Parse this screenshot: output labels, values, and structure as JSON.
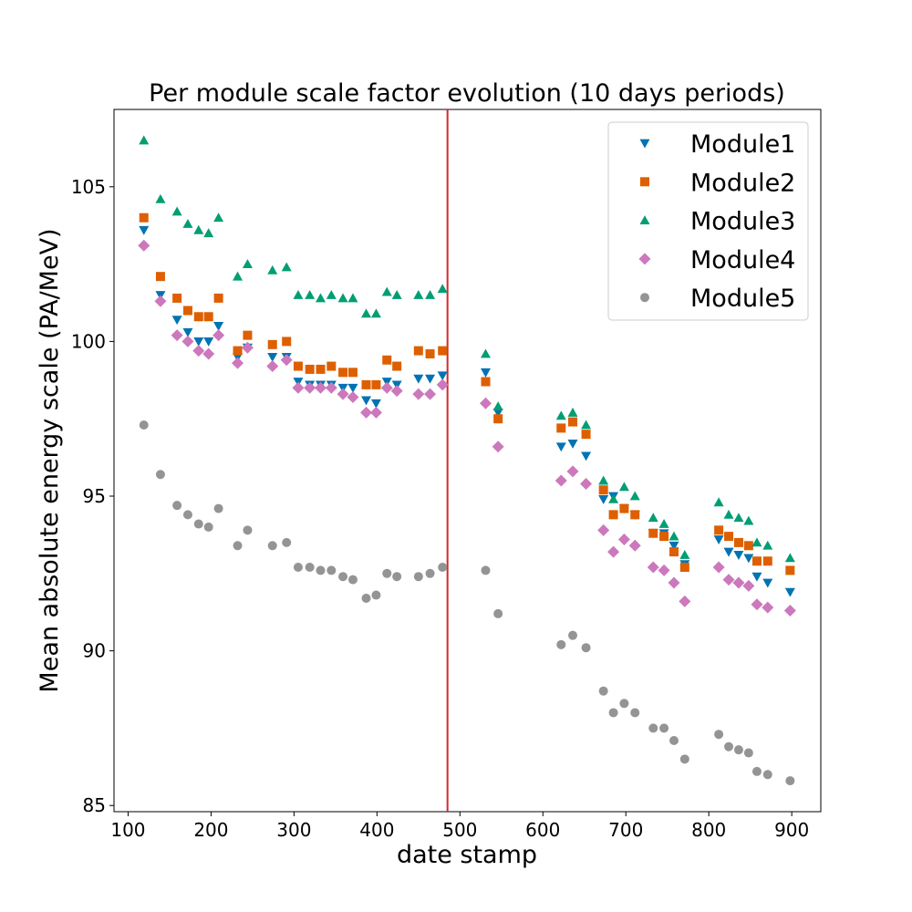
{
  "chart_data": {
    "type": "scatter",
    "title": "Per module scale factor evolution (10 days periods)",
    "xlabel": "date stamp",
    "ylabel": "Mean absolute energy scale (PA/MeV)",
    "xlim": [
      83,
      935
    ],
    "ylim": [
      84.8,
      107.5
    ],
    "xticks": [
      100,
      200,
      300,
      400,
      500,
      600,
      700,
      800,
      900
    ],
    "yticks": [
      85,
      90,
      95,
      100,
      105
    ],
    "grid": false,
    "legend_position": "top-right",
    "vline": {
      "x": 485,
      "color": "#d62728"
    },
    "x": [
      119,
      139,
      159,
      172,
      185,
      197,
      209,
      232,
      244,
      274,
      291,
      305,
      319,
      332,
      345,
      359,
      371,
      387,
      399,
      412,
      424,
      450,
      464,
      479,
      531,
      546,
      622,
      636,
      652,
      673,
      685,
      698,
      711,
      733,
      746,
      758,
      771,
      812,
      824,
      836,
      848,
      858,
      871,
      898
    ],
    "series": [
      {
        "name": "Module1",
        "marker": "triangle-down",
        "color": "#0173b2",
        "values": [
          103.6,
          101.5,
          100.7,
          100.3,
          100.0,
          100.0,
          100.5,
          99.5,
          99.8,
          99.5,
          99.5,
          98.7,
          98.6,
          98.6,
          98.6,
          98.5,
          98.5,
          98.1,
          98.0,
          98.7,
          98.6,
          98.8,
          98.8,
          98.9,
          99.0,
          97.7,
          96.6,
          96.7,
          96.3,
          94.9,
          95.0,
          94.6,
          94.4,
          93.8,
          93.8,
          93.4,
          92.8,
          93.6,
          93.2,
          93.1,
          93.0,
          92.4,
          92.2,
          91.9
        ]
      },
      {
        "name": "Module2",
        "marker": "square",
        "color": "#de5f00",
        "values": [
          104.0,
          102.1,
          101.4,
          101.0,
          100.8,
          100.8,
          101.4,
          99.7,
          100.2,
          99.9,
          100.0,
          99.2,
          99.1,
          99.1,
          99.2,
          99.0,
          99.0,
          98.6,
          98.6,
          99.4,
          99.2,
          99.7,
          99.6,
          99.7,
          98.7,
          97.5,
          97.2,
          97.4,
          97.0,
          95.2,
          94.4,
          94.6,
          94.4,
          93.8,
          93.7,
          93.2,
          92.7,
          93.9,
          93.7,
          93.5,
          93.4,
          92.9,
          92.9,
          92.6
        ]
      },
      {
        "name": "Module3",
        "marker": "triangle-up",
        "color": "#029e73",
        "values": [
          106.5,
          104.6,
          104.2,
          103.8,
          103.6,
          103.5,
          104.0,
          102.1,
          102.5,
          102.3,
          102.4,
          101.5,
          101.5,
          101.4,
          101.5,
          101.4,
          101.4,
          100.9,
          100.9,
          101.6,
          101.5,
          101.5,
          101.5,
          101.7,
          99.6,
          97.9,
          97.6,
          97.7,
          97.3,
          95.5,
          94.9,
          95.3,
          95.0,
          94.3,
          94.1,
          93.7,
          93.1,
          94.8,
          94.4,
          94.3,
          94.2,
          93.5,
          93.4,
          93.0
        ]
      },
      {
        "name": "Module4",
        "marker": "diamond",
        "color": "#cc78bc",
        "values": [
          103.1,
          101.3,
          100.2,
          100.0,
          99.7,
          99.6,
          100.2,
          99.3,
          99.8,
          99.2,
          99.4,
          98.5,
          98.5,
          98.5,
          98.5,
          98.3,
          98.2,
          97.7,
          97.7,
          98.5,
          98.4,
          98.3,
          98.3,
          98.6,
          98.0,
          96.6,
          95.5,
          95.8,
          95.4,
          93.9,
          93.2,
          93.6,
          93.4,
          92.7,
          92.6,
          92.2,
          91.6,
          92.7,
          92.3,
          92.2,
          92.1,
          91.5,
          91.4,
          91.3
        ]
      },
      {
        "name": "Module5",
        "marker": "circle",
        "color": "#949494",
        "values": [
          97.3,
          95.7,
          94.7,
          94.4,
          94.1,
          94.0,
          94.6,
          93.4,
          93.9,
          93.4,
          93.5,
          92.7,
          92.7,
          92.6,
          92.6,
          92.4,
          92.3,
          91.7,
          91.8,
          92.5,
          92.4,
          92.4,
          92.5,
          92.7,
          92.6,
          91.2,
          90.2,
          90.5,
          90.1,
          88.7,
          88.0,
          88.3,
          88.0,
          87.5,
          87.5,
          87.1,
          86.5,
          87.3,
          86.9,
          86.8,
          86.7,
          86.1,
          86.0,
          85.8
        ]
      }
    ]
  }
}
